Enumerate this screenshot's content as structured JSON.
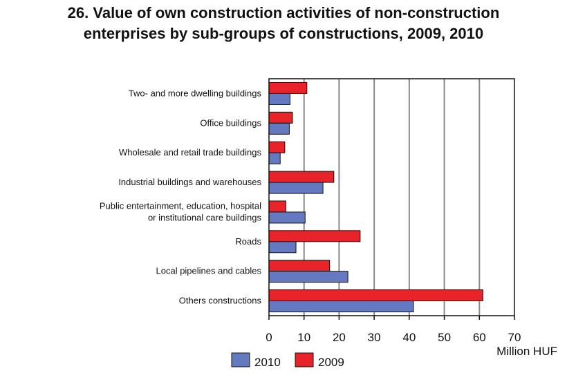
{
  "chart_data": {
    "type": "bar",
    "orientation": "horizontal",
    "title_lines": [
      "26. Value of own construction activities of non-construction",
      "enterprises by  sub-groups of constructions, 2009, 2010"
    ],
    "unit_label": "Million HUF",
    "categories": [
      [
        "Two- and more dwelling buildings"
      ],
      [
        "Office buildings"
      ],
      [
        "Wholesale and retail trade buildings"
      ],
      [
        "Industrial buildings and warehouses"
      ],
      [
        "Public entertainment, education, hospital",
        "or institutional care buildings"
      ],
      [
        "Roads"
      ],
      [
        "Local pipelines and cables"
      ],
      [
        "Others constructions"
      ]
    ],
    "series": [
      {
        "name": "2009",
        "color": "#e8232a",
        "values": [
          10.8,
          6.7,
          4.5,
          18.5,
          4.8,
          26.0,
          17.3,
          61.0
        ]
      },
      {
        "name": "2010",
        "color": "#6479c0",
        "values": [
          6.0,
          5.8,
          3.2,
          15.4,
          10.3,
          7.7,
          22.5,
          41.2
        ]
      }
    ],
    "legend_order": [
      "2010",
      "2009"
    ],
    "xlim": [
      0,
      70
    ],
    "xticks": [
      0,
      10,
      20,
      30,
      40,
      50,
      60,
      70
    ],
    "grid": true,
    "legend_position": "bottom"
  }
}
